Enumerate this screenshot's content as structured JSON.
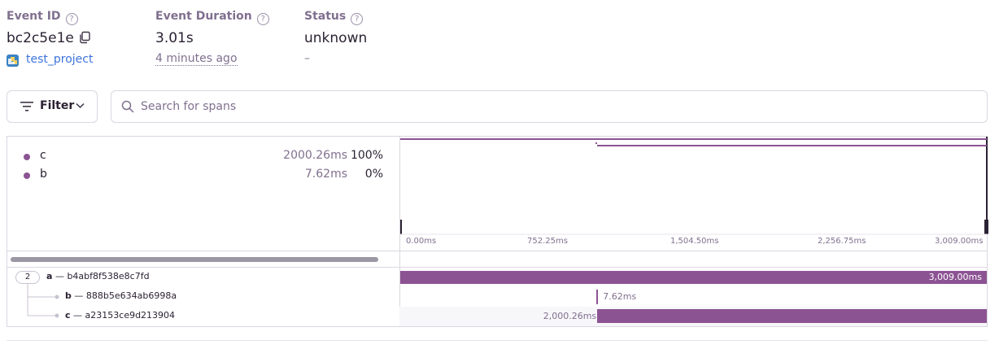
{
  "header": {
    "event_id_label": "Event ID",
    "event_id": "bc2c5e1e",
    "project": "test_project",
    "duration_label": "Event Duration",
    "duration": "3.01s",
    "time_ago": "4 minutes ago",
    "status_label": "Status",
    "status": "unknown",
    "status_sub": "–",
    "help_glyph": "?"
  },
  "toolbar": {
    "filter_label": "Filter",
    "search_placeholder": "Search for spans"
  },
  "ops": [
    {
      "name": "c",
      "duration": "2000.26ms",
      "percent": "100%"
    },
    {
      "name": "b",
      "duration": "7.62ms",
      "percent": "0%"
    }
  ],
  "ticks": [
    "0.00ms",
    "752.25ms",
    "1,504.50ms",
    "2,256.75ms",
    "3,009.00ms"
  ],
  "spans": [
    {
      "op": "a",
      "sep": "—",
      "id": "b4abf8f538e8c7fd",
      "children": "2",
      "duration": "3,009.00ms",
      "start_ms": 0,
      "dur_ms": 3009.0
    },
    {
      "op": "b",
      "sep": "—",
      "id": "888b5e634ab6998a",
      "duration": "7.62ms",
      "start_ms": 1007,
      "dur_ms": 7.62
    },
    {
      "op": "c",
      "sep": "—",
      "id": "a23153ce9d213904",
      "duration": "2,000.26ms",
      "start_ms": 1008.74,
      "dur_ms": 2000.26
    }
  ],
  "trace_total_ms": 3009.0,
  "colors": {
    "accent": "#8c5393",
    "link": "#3d74db",
    "muted": "#80708f",
    "border": "#dbd6e1"
  }
}
